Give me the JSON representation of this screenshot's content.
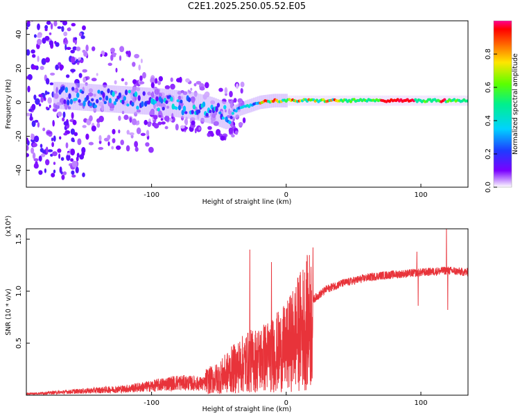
{
  "title": "C2E1.2025.250.05.52.E05",
  "chart_data": [
    {
      "type": "heatmap",
      "name": "spectrogram",
      "xlabel": "Height of straight line (km)",
      "ylabel": "Frequency (Hz)",
      "xlim": [
        -193,
        135
      ],
      "ylim": [
        -50,
        48
      ],
      "xticks": [
        -100,
        0,
        100
      ],
      "yticks": [
        -40,
        -20,
        0,
        20,
        40
      ],
      "ridge": {
        "description": "dominant frequency trace vs height",
        "x": [
          -170,
          -150,
          -130,
          -110,
          -90,
          -70,
          -55,
          -45,
          -35,
          -20,
          -10,
          0,
          20,
          60,
          80,
          100,
          120,
          135
        ],
        "y": [
          4,
          3,
          2,
          1,
          0,
          -2,
          -5,
          -8,
          -4,
          0,
          1,
          1,
          1,
          1,
          1,
          1,
          1,
          1
        ]
      },
      "colorbar": {
        "label": "Normalized spectral amplitude",
        "range": [
          0.0,
          1.0
        ],
        "ticks": [
          "0.0",
          "0.2",
          "0.4",
          "0.6",
          "0.8"
        ]
      }
    },
    {
      "type": "line",
      "name": "snr",
      "xlabel": "Height of straight line (km)",
      "ylabel": "SNR (10 * v/v)",
      "yscale_label": "(x10⁴)",
      "xlim": [
        -193,
        135
      ],
      "ylim": [
        0,
        1.6
      ],
      "xticks": [
        -100,
        0,
        100
      ],
      "yticks": [
        "0.5",
        "1.0",
        "1.5"
      ],
      "ytick_values": [
        0.5,
        1.0,
        1.5
      ],
      "color": "#e8333a",
      "envelope": {
        "x": [
          -193,
          -180,
          -160,
          -140,
          -120,
          -100,
          -90,
          -80,
          -70,
          -60,
          -50,
          -40,
          -30,
          -20,
          -10,
          0,
          10,
          20,
          30,
          40,
          50,
          60,
          70,
          80,
          90,
          100,
          110,
          120,
          135
        ],
        "y": [
          0.02,
          0.03,
          0.05,
          0.07,
          0.09,
          0.13,
          0.16,
          0.18,
          0.17,
          0.16,
          0.2,
          0.3,
          0.38,
          0.42,
          0.48,
          0.55,
          0.75,
          0.92,
          1.02,
          1.07,
          1.1,
          1.13,
          1.15,
          1.16,
          1.17,
          1.18,
          1.19,
          1.2,
          1.18
        ]
      },
      "spikes": [
        {
          "x": -27,
          "y": 1.4
        },
        {
          "x": -11,
          "y": 1.28
        },
        {
          "x": 97,
          "y": 1.38
        },
        {
          "x": 98,
          "y": 0.86
        },
        {
          "x": 119,
          "y": 1.6
        },
        {
          "x": 120,
          "y": 0.82
        }
      ]
    }
  ]
}
